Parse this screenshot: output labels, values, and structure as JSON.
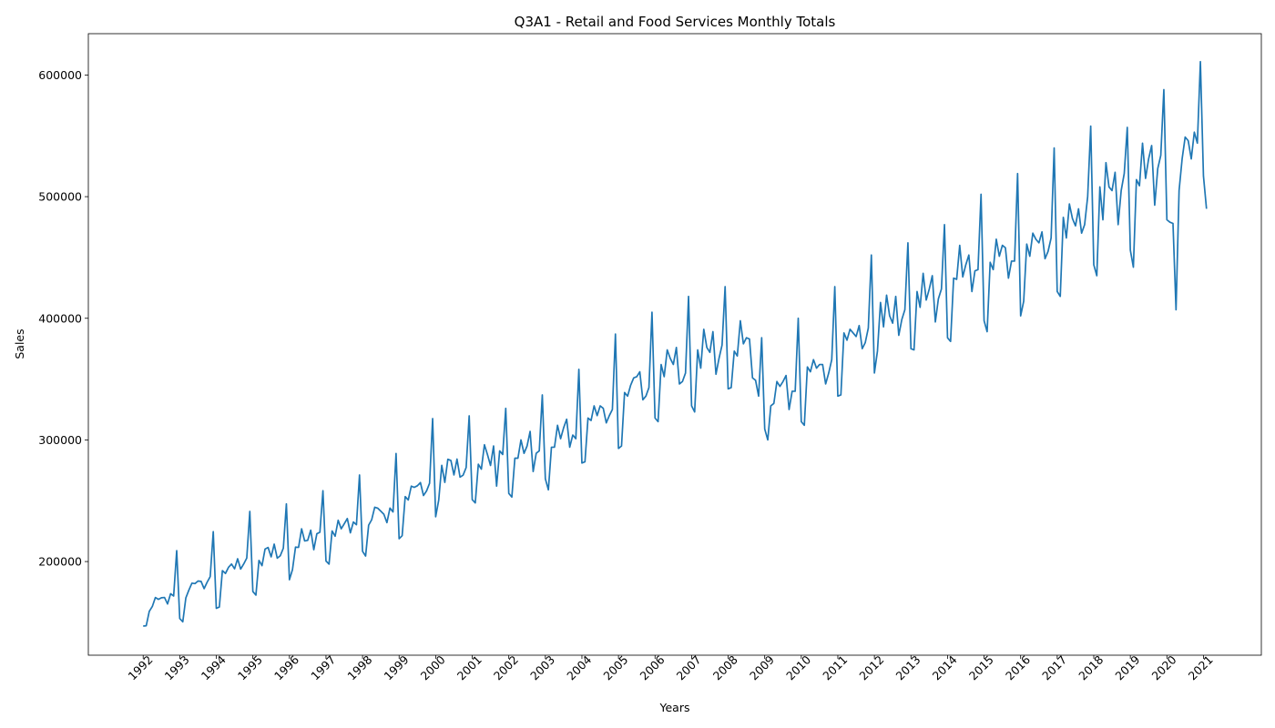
{
  "chart_data": {
    "type": "line",
    "title": "Q3A1 - Retail and Food Services Monthly Totals",
    "xlabel": "Years",
    "ylabel": "Sales",
    "grid": false,
    "legend": "none",
    "series_color": "#1f77b4",
    "x_ticks": [
      "1992",
      "1993",
      "1994",
      "1995",
      "1996",
      "1997",
      "1998",
      "1999",
      "2000",
      "2001",
      "2002",
      "2003",
      "2004",
      "2005",
      "2006",
      "2007",
      "2008",
      "2009",
      "2010",
      "2011",
      "2012",
      "2013",
      "2014",
      "2015",
      "2016",
      "2017",
      "2018",
      "2019",
      "2020",
      "2021"
    ],
    "y_ticks": [
      "200000",
      "300000",
      "400000",
      "500000",
      "600000"
    ],
    "xlim": [
      "1990-07",
      "2022-08"
    ],
    "ylim": [
      123000,
      634000
    ],
    "x_start": "1992-01",
    "x_frequency": "monthly",
    "series": [
      {
        "values": [
          146925,
          147223,
          159016,
          163046,
          170416,
          168922,
          170229,
          170470,
          165138,
          173534,
          171641,
          208969,
          153130,
          150447,
          170063,
          176525,
          182255,
          181881,
          183965,
          183702,
          177716,
          183023,
          187628,
          224565,
          161548,
          162625,
          192541,
          190193,
          195218,
          197948,
          194052,
          202277,
          193805,
          198024,
          202886,
          241266,
          175303,
          172433,
          200916,
          196623,
          210290,
          211595,
          203853,
          214285,
          202788,
          204778,
          210999,
          247422,
          185070,
          193316,
          211839,
          211624,
          226892,
          216931,
          217436,
          225816,
          209742,
          222838,
          224070,
          258231,
          200440,
          197921,
          225162,
          220830,
          233922,
          226935,
          231102,
          235367,
          223592,
          232510,
          230296,
          271171,
          208440,
          204554,
          229885,
          234394,
          244651,
          243860,
          241393,
          238873,
          232018,
          243961,
          240785,
          288848,
          218749,
          221240,
          253395,
          250614,
          261972,
          261002,
          262302,
          264926,
          254276,
          258026,
          264393,
          317556,
          236817,
          250519,
          279145,
          265083,
          284101,
          283052,
          271221,
          284226,
          269384,
          270982,
          277218,
          319820,
          250861,
          248196,
          280000,
          276000,
          296000,
          288000,
          279000,
          295000,
          262000,
          291000,
          288000,
          326000,
          256000,
          253000,
          285000,
          285000,
          300000,
          289000,
          295000,
          307000,
          274000,
          289000,
          291000,
          337000,
          268000,
          259000,
          294000,
          294000,
          312000,
          301000,
          310000,
          317000,
          294000,
          304000,
          301000,
          358000,
          281000,
          282000,
          318000,
          316000,
          328000,
          320000,
          328000,
          326000,
          314000,
          320000,
          325000,
          387000,
          293000,
          295000,
          339000,
          336000,
          345000,
          351000,
          352000,
          356000,
          333000,
          336000,
          343000,
          405000,
          318000,
          315000,
          362000,
          352000,
          374000,
          367000,
          362000,
          376000,
          346000,
          348000,
          355000,
          418000,
          328000,
          323000,
          374000,
          359000,
          391000,
          376000,
          372000,
          389000,
          354000,
          367000,
          378000,
          426000,
          342000,
          343000,
          373000,
          369000,
          398000,
          379000,
          384000,
          383000,
          351000,
          349000,
          336000,
          384000,
          309000,
          300000,
          328000,
          330000,
          348000,
          344000,
          348000,
          353000,
          325000,
          340000,
          340000,
          400000,
          315000,
          312000,
          360000,
          356000,
          366000,
          359000,
          362000,
          362000,
          346000,
          355000,
          366000,
          426000,
          336000,
          337000,
          388000,
          382000,
          391000,
          388000,
          385000,
          394000,
          375000,
          380000,
          392000,
          452000,
          355000,
          373000,
          413000,
          393000,
          419000,
          402000,
          396000,
          418000,
          386000,
          399000,
          407000,
          462000,
          375000,
          374000,
          422000,
          409000,
          437000,
          415000,
          424000,
          435000,
          397000,
          416000,
          424000,
          477000,
          384000,
          381000,
          433000,
          432000,
          460000,
          434000,
          444000,
          452000,
          422000,
          439000,
          440000,
          502000,
          398000,
          389000,
          446000,
          440000,
          465000,
          451000,
          460000,
          458000,
          433000,
          447000,
          447000,
          519000,
          402000,
          414000,
          461000,
          451000,
          470000,
          465000,
          462000,
          471000,
          449000,
          455000,
          466000,
          540000,
          422000,
          418000,
          483000,
          466000,
          494000,
          482000,
          476000,
          490000,
          470000,
          477000,
          500000,
          558000,
          444000,
          435000,
          508000,
          481000,
          528000,
          508000,
          505000,
          520000,
          477000,
          505000,
          519000,
          557000,
          456000,
          442000,
          514000,
          509000,
          544000,
          515000,
          531000,
          542000,
          493000,
          523000,
          534000,
          588000,
          481000,
          479000,
          478000,
          407000,
          505000,
          531000,
          549000,
          546000,
          531000,
          553000,
          544000,
          611000,
          517000,
          490000
        ]
      }
    ]
  }
}
